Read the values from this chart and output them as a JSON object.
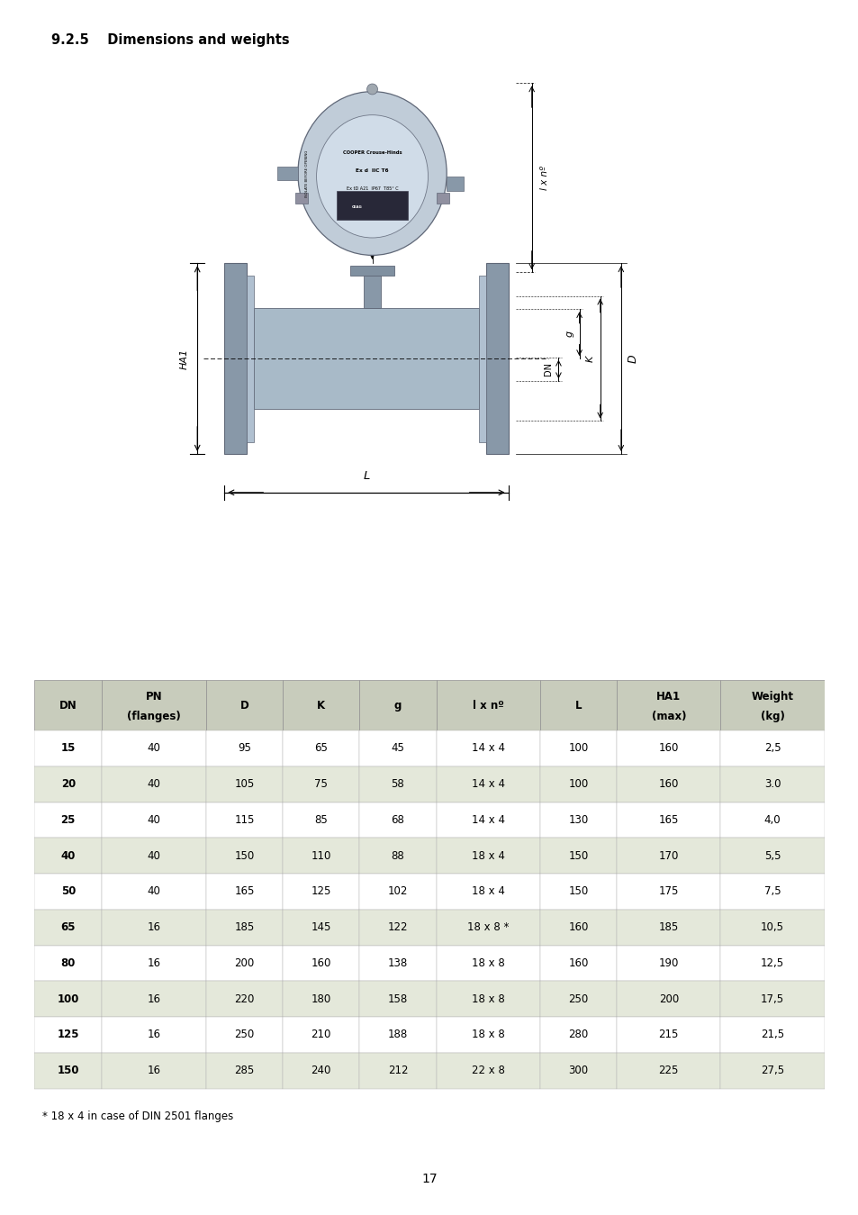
{
  "title": "9.2.5    Dimensions and weights",
  "table_headers_line1": [
    "DN",
    "PN",
    "D",
    "K",
    "g",
    "l x nº",
    "L",
    "HA1",
    "Weight"
  ],
  "table_headers_line2": [
    "",
    "(flanges)",
    "",
    "",
    "",
    "",
    "",
    "(max)",
    "(kg)"
  ],
  "table_rows": [
    [
      "15",
      "40",
      "95",
      "65",
      "45",
      "14 x 4",
      "100",
      "160",
      "2,5"
    ],
    [
      "20",
      "40",
      "105",
      "75",
      "58",
      "14 x 4",
      "100",
      "160",
      "3.0"
    ],
    [
      "25",
      "40",
      "115",
      "85",
      "68",
      "14 x 4",
      "130",
      "165",
      "4,0"
    ],
    [
      "40",
      "40",
      "150",
      "110",
      "88",
      "18 x 4",
      "150",
      "170",
      "5,5"
    ],
    [
      "50",
      "40",
      "165",
      "125",
      "102",
      "18 x 4",
      "150",
      "175",
      "7,5"
    ],
    [
      "65",
      "16",
      "185",
      "145",
      "122",
      "18 x 8 *",
      "160",
      "185",
      "10,5"
    ],
    [
      "80",
      "16",
      "200",
      "160",
      "138",
      "18 x 8",
      "160",
      "190",
      "12,5"
    ],
    [
      "100",
      "16",
      "220",
      "180",
      "158",
      "18 x 8",
      "250",
      "200",
      "17,5"
    ],
    [
      "125",
      "16",
      "250",
      "210",
      "188",
      "18 x 8",
      "280",
      "215",
      "21,5"
    ],
    [
      "150",
      "16",
      "285",
      "240",
      "212",
      "22 x 8",
      "300",
      "225",
      "27,5"
    ]
  ],
  "footnote": "* 18 x 4 in case of DIN 2501 flanges",
  "page_number": "17",
  "header_bg": "#c8ccbc",
  "odd_row_bg": "#ffffff",
  "even_row_bg": "#e4e8da",
  "background_color": "#ffffff",
  "pipe_fill": "#a8bac8",
  "flange_fill": "#8898a8",
  "housing_fill": "#c0ccd8",
  "housing_inner": "#d0dce8",
  "dark_metal": "#606878",
  "neck_fill": "#8898a8",
  "collar_fill": "#8090a0"
}
